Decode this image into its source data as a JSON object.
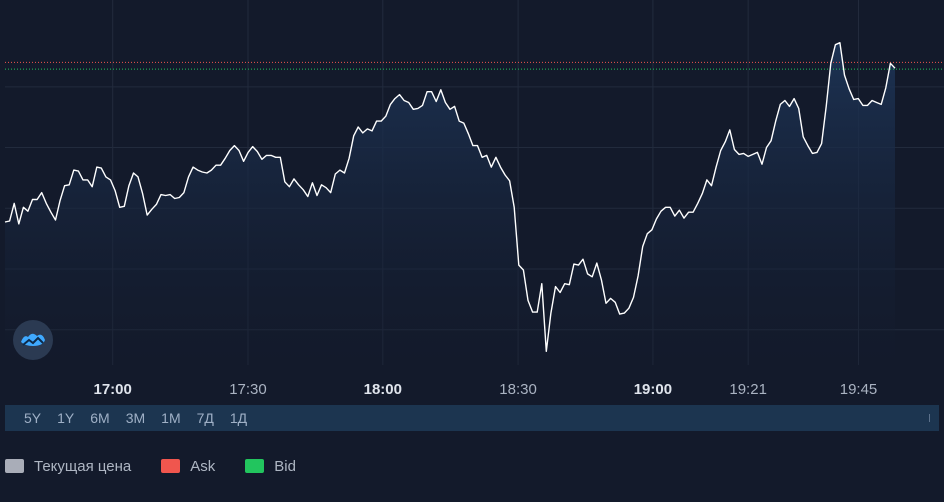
{
  "chart_data": {
    "type": "line",
    "series": [
      {
        "name": "Текущая цена",
        "color": "#ffffff",
        "values": [
          1.0,
          1.1,
          2.9,
          0.8,
          2.5,
          2.1,
          3.3,
          3.3,
          4.0,
          2.9,
          2.0,
          1.2,
          3.2,
          4.7,
          4.8,
          6.3,
          6.2,
          5.3,
          5.3,
          4.6,
          6.6,
          6.5,
          5.6,
          5.3,
          4.2,
          2.5,
          2.6,
          4.7,
          6.0,
          5.6,
          3.9,
          1.7,
          2.3,
          2.8,
          3.8,
          3.7,
          3.8,
          3.4,
          3.5,
          4.0,
          5.6,
          6.6,
          6.3,
          6.1,
          6.0,
          6.3,
          6.8,
          6.8,
          7.5,
          8.3,
          8.8,
          8.3,
          7.2,
          8.1,
          8.7,
          8.2,
          7.4,
          7.8,
          7.8,
          7.6,
          7.6,
          5.1,
          4.6,
          5.4,
          4.8,
          4.3,
          3.6,
          5.0,
          3.7,
          4.8,
          4.5,
          4.0,
          5.9,
          6.3,
          6.0,
          7.5,
          9.8,
          10.7,
          10.1,
          10.5,
          10.3,
          11.3,
          11.3,
          11.8,
          13.0,
          13.6,
          14.0,
          13.4,
          13.2,
          12.5,
          12.6,
          12.9,
          14.3,
          14.3,
          13.3,
          14.5,
          13.2,
          12.5,
          12.8,
          11.3,
          11.1,
          10.0,
          8.8,
          8.8,
          7.6,
          7.8,
          6.6,
          7.6,
          6.6,
          5.8,
          5.2,
          2.5,
          -3.4,
          -3.9,
          -7.0,
          -8.2,
          -8.2,
          -5.3,
          -12.2,
          -8.3,
          -5.6,
          -6.2,
          -5.3,
          -5.4,
          -3.3,
          -3.4,
          -2.8,
          -4.3,
          -4.6,
          -3.2,
          -4.9,
          -7.3,
          -6.8,
          -7.2,
          -8.4,
          -8.3,
          -7.8,
          -6.7,
          -4.5,
          -1.5,
          -0.2,
          0.2,
          1.3,
          2.1,
          2.5,
          2.5,
          1.6,
          2.2,
          1.4,
          2.0,
          2.0,
          2.9,
          3.9,
          5.3,
          4.7,
          6.6,
          8.3,
          9.2,
          10.4,
          8.4,
          7.9,
          8.0,
          7.7,
          7.9,
          8.1,
          6.9,
          8.6,
          9.3,
          11.3,
          13.0,
          13.4,
          12.8,
          13.6,
          12.6,
          9.7,
          8.8,
          8.0,
          8.1,
          9.0,
          12.8,
          17.2,
          19.1,
          19.3,
          16.0,
          14.6,
          13.5,
          13.6,
          12.9,
          12.9,
          13.4,
          13.2,
          13.0,
          14.7,
          17.2,
          16.7
        ]
      }
    ],
    "ask_level": 17.3,
    "bid_level": 16.6,
    "ylim": [
      -13.6,
      20.6
    ],
    "x_range": [
      0,
      200
    ],
    "xticks": [
      {
        "label": "17:00",
        "at": 24.2,
        "major": true
      },
      {
        "label": "17:30",
        "at": 54.6,
        "major": false
      },
      {
        "label": "18:00",
        "at": 84.9,
        "major": true
      },
      {
        "label": "18:30",
        "at": 115.3,
        "major": false
      },
      {
        "label": "19:00",
        "at": 145.6,
        "major": true
      },
      {
        "label": "19:21",
        "at": 167.0,
        "major": false
      },
      {
        "label": "19:45",
        "at": 191.8,
        "major": false
      }
    ],
    "grid": true
  },
  "periods": [
    "5Y",
    "1Y",
    "6M",
    "3M",
    "1M",
    "7Д",
    "1Д"
  ],
  "legend": [
    {
      "label": "Текущая цена",
      "color": "#a9adb8"
    },
    {
      "label": "Ask",
      "color": "#f0564e"
    },
    {
      "label": "Bid",
      "color": "#22c55e"
    }
  ],
  "colors": {
    "background": "#131a2b",
    "grid": "#222b3d",
    "line": "#ffffff",
    "ask": "#f0564e",
    "bid": "#22c55e",
    "fill_top": "#1d3456",
    "period_bar": "#1c3550",
    "brand_icon": "#3fa9ff"
  },
  "brand": {
    "icon": "cloud-wave-icon"
  }
}
